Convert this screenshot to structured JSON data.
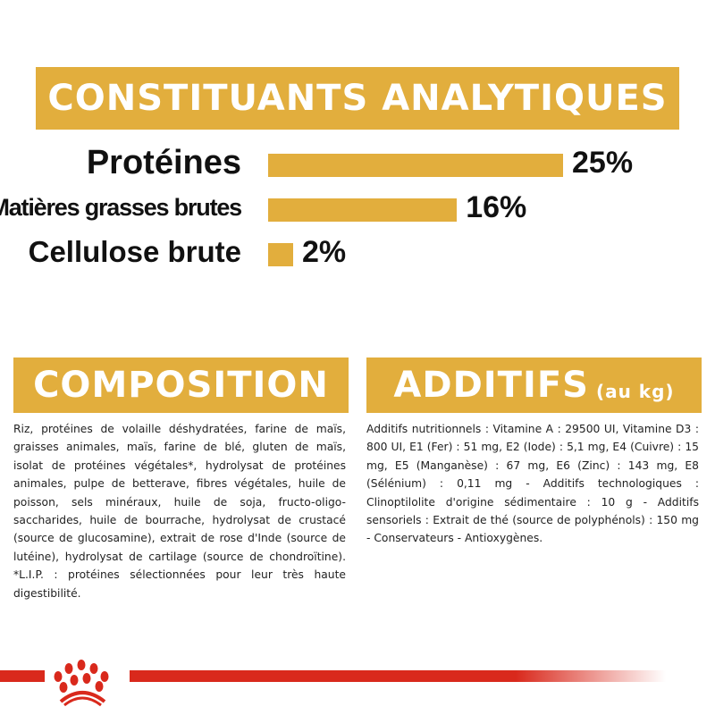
{
  "analytical": {
    "title": "CONSTITUANTS ANALYTIQUES",
    "items": [
      {
        "label": "Protéines",
        "value": "25%",
        "percent": 25
      },
      {
        "label": "Matières grasses brutes",
        "value": "16%",
        "percent": 16
      },
      {
        "label": "Cellulose brute",
        "value": "2%",
        "percent": 2
      }
    ]
  },
  "composition": {
    "title": "COMPOSITION",
    "text": "Riz, protéines de volaille déshydratées, farine de maïs, graisses animales, maïs, farine de blé, gluten de maïs, isolat de protéines végétales*, hydrolysat de protéines animales, pulpe de betterave, fibres végétales, huile de poisson, sels minéraux, huile de soja, fructo-oligo-saccharides, huile de bourrache, hydrolysat de crustacé (source de glucosamine), extrait de rose d'Inde (source de lutéine), hydrolysat de cartilage (source de chondroïtine). *L.I.P. : protéines sélectionnées pour leur très haute digestibilité."
  },
  "additives": {
    "title": "ADDITIFS",
    "unit": "(au kg)",
    "text": "Additifs nutritionnels : Vitamine A : 29500 UI, Vitamine D3 : 800 UI, E1 (Fer) : 51 mg, E2 (Iode) : 5,1 mg, E4 (Cuivre) : 15 mg, E5 (Manganèse) : 67 mg, E6 (Zinc) : 143 mg, E8 (Sélénium) : 0,11 mg - Additifs technologiques : Clinoptilolite d'origine sédimentaire : 10 g - Additifs sensoriels : Extrait de thé (source de polyphénols) : 150 mg - Conservateurs - Antioxygènes."
  },
  "colors": {
    "gold": "#e2ae3d",
    "brand_red": "#d9291c"
  },
  "footer": {
    "logo_icon": "royal-canin-crown-icon"
  }
}
